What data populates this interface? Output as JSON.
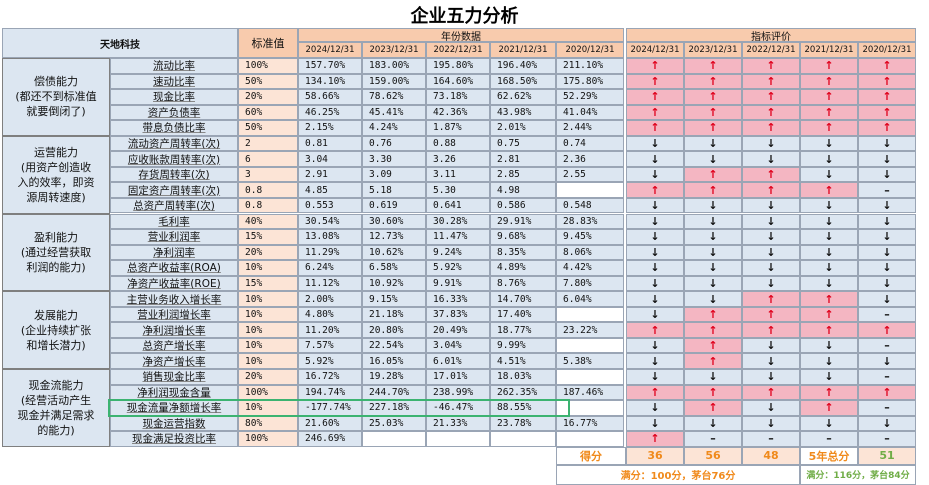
{
  "title": "企业五力分析",
  "company": "天地科技",
  "std_header": "标准值",
  "years_header": "年份数据",
  "eval_header": "指标评价",
  "years": [
    "2024/12/31",
    "2023/12/31",
    "2022/12/31",
    "2021/12/31",
    "2020/12/31"
  ],
  "groups": [
    {
      "label": "偿债能力\n(都还不到标准值\n就要倒闭了)",
      "rows": [
        {
          "name": "流动比率",
          "std": "100%",
          "vals": [
            "157.70%",
            "183.00%",
            "195.80%",
            "196.40%",
            "211.10%"
          ],
          "eval": [
            "up",
            "up",
            "up",
            "up",
            "up"
          ]
        },
        {
          "name": "速动比率",
          "std": "50%",
          "vals": [
            "134.10%",
            "159.00%",
            "164.60%",
            "168.50%",
            "175.80%"
          ],
          "eval": [
            "up",
            "up",
            "up",
            "up",
            "up"
          ]
        },
        {
          "name": "现金比率",
          "std": "20%",
          "vals": [
            "58.66%",
            "78.62%",
            "73.18%",
            "62.62%",
            "52.29%"
          ],
          "eval": [
            "up",
            "up",
            "up",
            "up",
            "up"
          ]
        },
        {
          "name": "资产负债率",
          "std": "60%",
          "vals": [
            "46.25%",
            "45.41%",
            "42.36%",
            "43.98%",
            "41.04%"
          ],
          "eval": [
            "up",
            "up",
            "up",
            "up",
            "up"
          ]
        },
        {
          "name": "带息负债比率",
          "std": "50%",
          "vals": [
            "2.15%",
            "4.24%",
            "1.87%",
            "2.01%",
            "2.44%"
          ],
          "eval": [
            "up",
            "up",
            "up",
            "up",
            "up"
          ]
        }
      ]
    },
    {
      "label": "运营能力\n(用资产创造收\n入的效率，即资\n源周转速度)",
      "rows": [
        {
          "name": "流动资产周转率(次)",
          "std": "2",
          "vals": [
            "0.81",
            "0.76",
            "0.88",
            "0.75",
            "0.74"
          ],
          "eval": [
            "down",
            "down",
            "down",
            "down",
            "down"
          ]
        },
        {
          "name": "应收账款周转率(次)",
          "std": "6",
          "vals": [
            "3.04",
            "3.30",
            "3.26",
            "2.81",
            "2.36"
          ],
          "eval": [
            "down",
            "down",
            "down",
            "down",
            "down"
          ]
        },
        {
          "name": "存货周转率(次)",
          "std": "3",
          "vals": [
            "2.91",
            "3.09",
            "3.11",
            "2.85",
            "2.55"
          ],
          "eval": [
            "down",
            "up",
            "up",
            "down",
            "down"
          ]
        },
        {
          "name": "固定资产周转率(次)",
          "std": "0.8",
          "vals": [
            "4.85",
            "5.18",
            "5.30",
            "4.98",
            ""
          ],
          "eval": [
            "up",
            "up",
            "up",
            "up",
            "dash"
          ]
        },
        {
          "name": "总资产周转率(次)",
          "std": "0.8",
          "vals": [
            "0.553",
            "0.619",
            "0.641",
            "0.586",
            "0.548"
          ],
          "eval": [
            "down",
            "down",
            "down",
            "down",
            "down"
          ]
        }
      ]
    },
    {
      "label": "盈利能力\n(通过经营获取\n利润的能力)",
      "rows": [
        {
          "name": "毛利率",
          "std": "40%",
          "vals": [
            "30.54%",
            "30.60%",
            "30.28%",
            "29.91%",
            "28.83%"
          ],
          "eval": [
            "down",
            "down",
            "down",
            "down",
            "down"
          ]
        },
        {
          "name": "营业利润率",
          "std": "15%",
          "vals": [
            "13.08%",
            "12.73%",
            "11.47%",
            "9.68%",
            "9.45%"
          ],
          "eval": [
            "down",
            "down",
            "down",
            "down",
            "down"
          ]
        },
        {
          "name": "净利润率",
          "std": "20%",
          "vals": [
            "11.29%",
            "10.62%",
            "9.24%",
            "8.35%",
            "8.06%"
          ],
          "eval": [
            "down",
            "down",
            "down",
            "down",
            "down"
          ]
        },
        {
          "name": "总资产收益率(ROA)",
          "std": "10%",
          "vals": [
            "6.24%",
            "6.58%",
            "5.92%",
            "4.89%",
            "4.42%"
          ],
          "eval": [
            "down",
            "down",
            "down",
            "down",
            "down"
          ]
        },
        {
          "name": "净资产收益率(ROE)",
          "std": "15%",
          "vals": [
            "11.12%",
            "10.92%",
            "9.91%",
            "8.76%",
            "7.80%"
          ],
          "eval": [
            "down",
            "down",
            "down",
            "down",
            "down"
          ]
        }
      ]
    },
    {
      "label": "发展能力\n(企业持续扩张\n和增长潜力)",
      "rows": [
        {
          "name": "主营业务收入增长率",
          "std": "10%",
          "vals": [
            "2.00%",
            "9.15%",
            "16.33%",
            "14.70%",
            "6.04%"
          ],
          "eval": [
            "down",
            "down",
            "up",
            "up",
            "down"
          ]
        },
        {
          "name": "营业利润增长率",
          "std": "10%",
          "vals": [
            "4.80%",
            "21.18%",
            "37.83%",
            "17.40%",
            ""
          ],
          "eval": [
            "down",
            "up",
            "up",
            "up",
            "dash"
          ]
        },
        {
          "name": "净利润增长率",
          "std": "10%",
          "vals": [
            "11.20%",
            "20.80%",
            "20.49%",
            "18.77%",
            "23.22%"
          ],
          "eval": [
            "up",
            "up",
            "up",
            "up",
            "up"
          ]
        },
        {
          "name": "总资产增长率",
          "std": "10%",
          "vals": [
            "7.57%",
            "22.54%",
            "3.04%",
            "9.99%",
            ""
          ],
          "eval": [
            "down",
            "up",
            "down",
            "down",
            "dash"
          ]
        },
        {
          "name": "净资产增长率",
          "std": "10%",
          "vals": [
            "5.92%",
            "16.05%",
            "6.01%",
            "4.51%",
            "5.38%"
          ],
          "eval": [
            "down",
            "up",
            "down",
            "down",
            "down"
          ]
        }
      ]
    },
    {
      "label": "现金流能力\n(经营活动产生\n现金并满足需求\n的能力)",
      "rows": [
        {
          "name": "销售现金比率",
          "std": "20%",
          "vals": [
            "16.72%",
            "19.28%",
            "17.01%",
            "18.03%",
            ""
          ],
          "eval": [
            "down",
            "down",
            "down",
            "down",
            "dash"
          ]
        },
        {
          "name": "净利润现金含量",
          "std": "100%",
          "vals": [
            "194.74%",
            "244.70%",
            "238.99%",
            "262.35%",
            "187.46%"
          ],
          "eval": [
            "up",
            "up",
            "up",
            "up",
            "up"
          ]
        },
        {
          "name": "现金流量净额增长率",
          "std": "10%",
          "vals": [
            "-177.74%",
            "227.18%",
            "-46.47%",
            "88.55%",
            ""
          ],
          "eval": [
            "down",
            "up",
            "down",
            "up",
            "dash"
          ]
        },
        {
          "name": "现金运营指数",
          "std": "80%",
          "vals": [
            "21.60%",
            "25.03%",
            "21.33%",
            "23.78%",
            "16.77%"
          ],
          "eval": [
            "down",
            "down",
            "down",
            "down",
            "down"
          ]
        },
        {
          "name": "现金满足投资比率",
          "std": "100%",
          "vals": [
            "246.69%",
            "",
            "",
            "",
            ""
          ],
          "eval": [
            "up",
            "dash",
            "dash",
            "dash",
            "dash"
          ]
        }
      ]
    }
  ],
  "score": {
    "label": "得分",
    "values": [
      "36",
      "56",
      "48"
    ],
    "total_label": "5年总分",
    "total": "51",
    "full_note": "满分：100分，茅台76分",
    "total_note": "满分：116分，茅台84分"
  },
  "colors": {
    "up": "#e0001b",
    "pink": "#f4b6c2",
    "peach": "#fce4d6",
    "blue": "#dce6f1",
    "header": "#f8cbad",
    "highlight": "#3cb371"
  }
}
